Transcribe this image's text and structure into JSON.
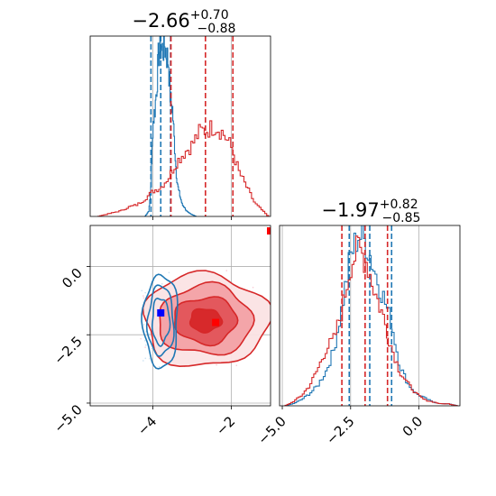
{
  "chart_data": [
    {
      "type": "histogram",
      "panel": "top-left",
      "title_main": "−2.66",
      "title_sup": "+0.70",
      "title_sub": "−0.88",
      "xlim": [
        -5.6,
        -1.0
      ],
      "grid": true,
      "series": [
        {
          "name": "",
          "color": "#1f77b4",
          "x": [
            -4.2,
            -4.1,
            -4.05,
            -4.0,
            -3.95,
            -3.9,
            -3.85,
            -3.8,
            -3.75,
            -3.7,
            -3.65,
            -3.6,
            -3.55,
            -3.5,
            -3.45,
            -3.4,
            -3.35,
            -3.3,
            -3.25,
            -3.2,
            -3.15,
            -3.1,
            -3.0,
            -2.9
          ],
          "y": [
            0.0,
            0.03,
            0.15,
            0.48,
            0.55,
            0.68,
            0.85,
            0.88,
            0.86,
            0.89,
            0.84,
            0.8,
            0.6,
            0.56,
            0.38,
            0.22,
            0.14,
            0.1,
            0.06,
            0.05,
            0.03,
            0.02,
            0.01,
            0.0
          ],
          "quantiles": [
            -4.05,
            -3.8,
            -3.55
          ]
        },
        {
          "name": "",
          "color": "#d62728",
          "x": [
            -5.4,
            -5.2,
            -5.0,
            -4.8,
            -4.6,
            -4.4,
            -4.2,
            -4.0,
            -3.8,
            -3.6,
            -3.4,
            -3.2,
            -3.0,
            -2.8,
            -2.6,
            -2.4,
            -2.2,
            -2.0,
            -1.8,
            -1.6,
            -1.4,
            -1.2,
            -1.05
          ],
          "y": [
            0.0,
            0.01,
            0.02,
            0.03,
            0.05,
            0.06,
            0.09,
            0.13,
            0.15,
            0.2,
            0.28,
            0.33,
            0.37,
            0.44,
            0.45,
            0.47,
            0.43,
            0.36,
            0.23,
            0.15,
            0.07,
            0.03,
            0.0
          ],
          "quantiles": [
            -3.54,
            -2.66,
            -1.96
          ]
        }
      ]
    },
    {
      "type": "histogram",
      "panel": "bottom-right",
      "title_main": "−1.97",
      "title_sup": "+0.82",
      "title_sub": "−0.85",
      "xlim": [
        -5.1,
        1.5
      ],
      "xticks": [
        "−5.0",
        "−2.5",
        "0.0"
      ],
      "xtick_values": [
        -5.0,
        -2.5,
        0.0
      ],
      "grid": true,
      "series": [
        {
          "name": "",
          "color": "#1f77b4",
          "x": [
            -4.9,
            -4.6,
            -4.3,
            -4.0,
            -3.7,
            -3.4,
            -3.1,
            -2.8,
            -2.5,
            -2.2,
            -1.9,
            -1.6,
            -1.3,
            -1.0,
            -0.7,
            -0.4,
            -0.1,
            0.2,
            0.5,
            0.8,
            1.1,
            1.4
          ],
          "y": [
            0.0,
            0.01,
            0.03,
            0.06,
            0.1,
            0.17,
            0.28,
            0.5,
            0.74,
            0.85,
            0.8,
            0.66,
            0.54,
            0.41,
            0.2,
            0.11,
            0.06,
            0.04,
            0.02,
            0.01,
            0.01,
            0.0
          ],
          "quantiles": [
            -2.55,
            -1.8,
            -1.0
          ]
        },
        {
          "name": "",
          "color": "#d62728",
          "x": [
            -4.9,
            -4.6,
            -4.3,
            -4.0,
            -3.7,
            -3.4,
            -3.1,
            -2.8,
            -2.5,
            -2.2,
            -1.9,
            -1.6,
            -1.3,
            -1.0,
            -0.7,
            -0.4,
            -0.1,
            0.2,
            0.5,
            0.8,
            1.1,
            1.4
          ],
          "y": [
            0.0,
            0.02,
            0.05,
            0.1,
            0.18,
            0.28,
            0.33,
            0.48,
            0.7,
            0.78,
            0.71,
            0.56,
            0.44,
            0.29,
            0.17,
            0.11,
            0.06,
            0.03,
            0.02,
            0.01,
            0.01,
            0.0
          ],
          "quantiles": [
            -2.82,
            -1.97,
            -1.15
          ]
        }
      ]
    },
    {
      "type": "contour",
      "panel": "bottom-left",
      "xlim": [
        -5.6,
        -1.0
      ],
      "ylim": [
        -5.1,
        1.5
      ],
      "xticks": [
        "−4",
        "−2"
      ],
      "xtick_values": [
        -4,
        -2
      ],
      "yticks": [
        "−5.0",
        "−2.5",
        "0.0"
      ],
      "ytick_values": [
        -5.0,
        -2.5,
        0.0
      ],
      "grid": true,
      "series": [
        {
          "name": "",
          "color": "#d62728",
          "fill": true,
          "center": [
            -2.66,
            -1.97
          ],
          "sigma": [
            0.8,
            0.85
          ],
          "levels": [
            0.5,
            1.0,
            1.5,
            2.0
          ],
          "marker": [
            -2.4,
            -2.05
          ]
        },
        {
          "name": "",
          "color": "#1f77b4",
          "fill": false,
          "center": [
            -3.8,
            -2.0
          ],
          "sigma": [
            0.22,
            0.85
          ],
          "levels": [
            1.0,
            1.5,
            2.0
          ],
          "marker": [
            -3.8,
            -1.7
          ]
        }
      ],
      "extra_marker": [
        -1.0,
        1.3
      ]
    }
  ]
}
